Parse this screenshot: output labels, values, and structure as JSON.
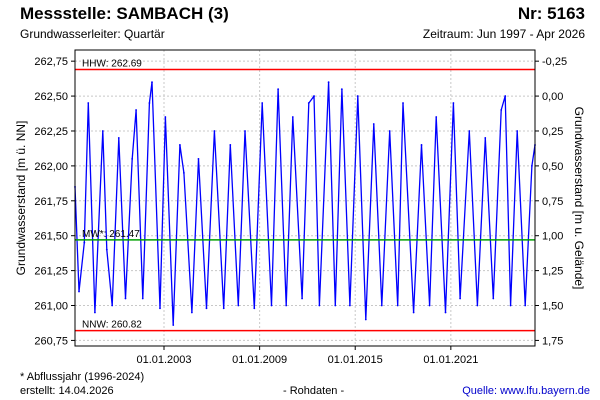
{
  "header": {
    "title": "Messstelle: SAMBACH (3)",
    "number": "Nr: 5163",
    "aquifer": "Grundwasserleiter: Quartär",
    "period": "Zeitraum: Jun 1997 - Apr 2026"
  },
  "footer": {
    "note": "* Abflussjahr (1996-2024)",
    "created": "erstellt:  14.04.2026",
    "rawdata": "- Rohdaten -",
    "source": "Quelle: www.lfu.bayern.de"
  },
  "colors": {
    "series": "#0000ff",
    "extreme_lines": "#ff0000",
    "mean_line": "#00a000",
    "grid": "#c8c8c8"
  },
  "chart_data": {
    "type": "line",
    "title": "",
    "ylabel": "Grundwasserstand [m ü. NN]",
    "y2label": "Grundwasserstand [m u. Gelände]",
    "ylim": [
      260.71,
      262.83
    ],
    "y_ticks": [
      "262,75",
      "262,50",
      "262,25",
      "262,00",
      "261,75",
      "261,50",
      "261,25",
      "261,00",
      "260,75"
    ],
    "y2_ticks": [
      "-0,25",
      "0,00",
      "0,25",
      "0,50",
      "0,75",
      "1,00",
      "1,25",
      "1,50",
      "1,75"
    ],
    "x_ticks": [
      "01.01.2003",
      "01.01.2009",
      "01.01.2015",
      "01.01.2021"
    ],
    "xlim": [
      "1997-06-01",
      "2026-04-14"
    ],
    "grid": true,
    "reference_lines": [
      {
        "label": "HHW: 262.69",
        "value": 262.69,
        "color": "#ff0000"
      },
      {
        "label": "MW*: 261.47",
        "value": 261.47,
        "color": "#00a000"
      },
      {
        "label": "NNW: 260.82",
        "value": 260.82,
        "color": "#ff0000"
      }
    ],
    "series": [
      {
        "color": "#0000ff",
        "x": [
          "1997-06-01",
          "1997-09-01",
          "1998-01-01",
          "1998-04-01",
          "1998-09-01",
          "1999-03-01",
          "1999-06-01",
          "1999-10-01",
          "2000-03-01",
          "2000-08-01",
          "2001-01-01",
          "2001-04-01",
          "2001-09-01",
          "2002-02-01",
          "2002-04-01",
          "2002-10-01",
          "2003-02-01",
          "2003-08-01",
          "2004-01-01",
          "2004-04-01",
          "2004-10-01",
          "2005-03-01",
          "2005-09-01",
          "2006-03-01",
          "2006-10-01",
          "2007-03-01",
          "2007-09-01",
          "2008-02-01",
          "2008-09-01",
          "2009-03-01",
          "2009-10-01",
          "2010-03-01",
          "2010-09-01",
          "2011-02-01",
          "2011-09-01",
          "2012-02-01",
          "2012-06-01",
          "2012-10-01",
          "2013-05-01",
          "2013-10-01",
          "2014-03-01",
          "2014-09-01",
          "2015-03-01",
          "2015-09-01",
          "2016-03-01",
          "2016-09-01",
          "2017-03-01",
          "2017-09-01",
          "2018-01-01",
          "2018-09-01",
          "2019-03-01",
          "2019-09-01",
          "2020-02-01",
          "2020-09-01",
          "2021-03-01",
          "2021-08-01",
          "2022-03-01",
          "2022-09-01",
          "2023-03-01",
          "2023-09-01",
          "2024-03-01",
          "2024-06-01",
          "2024-10-01",
          "2025-03-01",
          "2025-09-01",
          "2026-02-01",
          "2026-04-14"
        ],
        "y": [
          261.85,
          261.1,
          261.45,
          262.45,
          260.95,
          262.25,
          261.4,
          261.0,
          262.2,
          261.05,
          262.05,
          262.4,
          261.05,
          262.45,
          262.6,
          260.98,
          262.35,
          260.86,
          262.15,
          261.95,
          260.95,
          262.05,
          260.98,
          262.25,
          260.98,
          262.15,
          261.0,
          262.25,
          260.98,
          262.45,
          261.0,
          262.55,
          261.0,
          262.35,
          261.05,
          262.45,
          262.5,
          261.0,
          262.6,
          261.0,
          262.55,
          261.0,
          262.5,
          260.9,
          262.3,
          261.0,
          262.25,
          261.0,
          262.45,
          260.95,
          262.15,
          261.0,
          262.35,
          260.95,
          262.45,
          261.05,
          262.25,
          261.0,
          262.2,
          261.05,
          262.4,
          262.5,
          261.0,
          262.25,
          261.0,
          262.0,
          262.15
        ]
      }
    ]
  }
}
